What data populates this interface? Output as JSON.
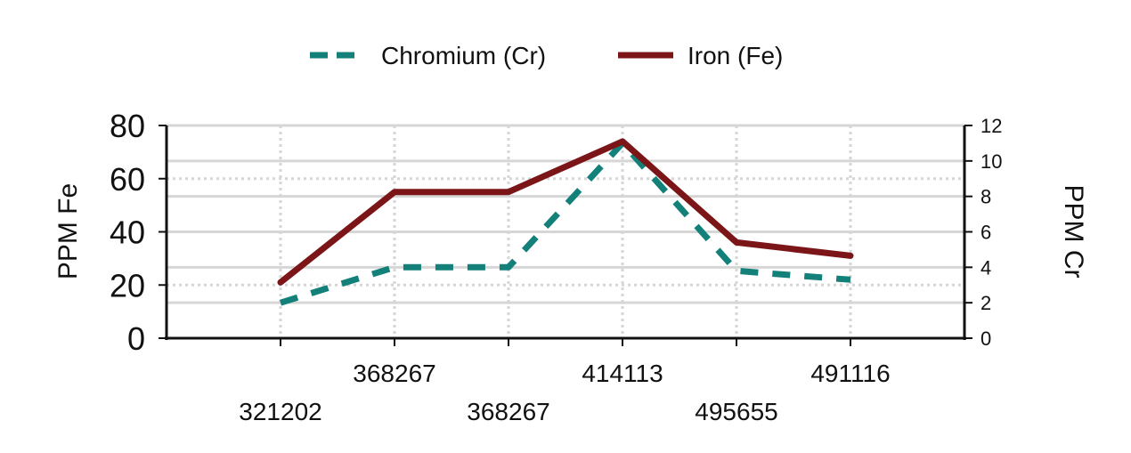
{
  "chart_data": {
    "type": "line",
    "categories": [
      "321202",
      "368267",
      "368267",
      "414113",
      "495655",
      "491116"
    ],
    "series": [
      {
        "name": "Chromium (Cr)",
        "axis": "right",
        "values": [
          2.0,
          4.0,
          4.0,
          11.0,
          3.8,
          3.3
        ],
        "color": "#138079",
        "dash": "dashed"
      },
      {
        "name": "Iron (Fe)",
        "axis": "left",
        "values": [
          21,
          55,
          55,
          74,
          36,
          31
        ],
        "color": "#7B1517",
        "dash": "solid"
      }
    ],
    "ylabel_left": "PPM Fe",
    "ylabel_right": "PPM Cr",
    "ylim_left": [
      0,
      80
    ],
    "ylim_right": [
      0,
      12
    ],
    "yticks_left": [
      "0",
      "20",
      "40",
      "60",
      "80"
    ],
    "yticks_right": [
      "0",
      "2",
      "4",
      "6",
      "8",
      "10",
      "12"
    ],
    "legend_position": "top-center",
    "grid": true
  }
}
